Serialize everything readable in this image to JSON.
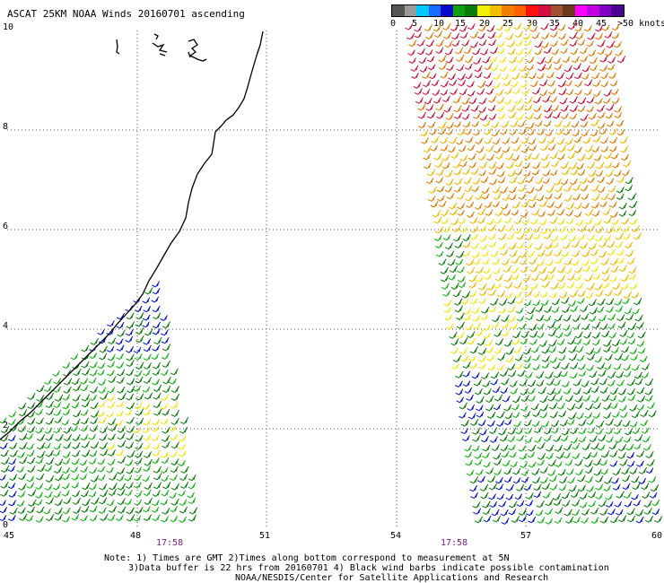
{
  "title": "ASCAT 25KM NOAA Winds 20160701 ascending",
  "legend": {
    "unit_label": ">50 knots",
    "ticks": [
      "0",
      "5",
      "10",
      "15",
      "20",
      "25",
      "30",
      "35",
      "40",
      "45"
    ],
    "colors": [
      "#555555",
      "#9a9a9a",
      "#00c8ff",
      "#1a6cff",
      "#0a0acc",
      "#10a010",
      "#0a7a0a",
      "#f0f000",
      "#f0c000",
      "#f08000",
      "#ff6000",
      "#ff1010",
      "#d01040",
      "#a05030",
      "#6a3a1a",
      "#ff00ff",
      "#c000e0",
      "#8000c0",
      "#4a0090"
    ]
  },
  "axes": {
    "x_ticks": [
      "45",
      "48",
      "51",
      "54",
      "57",
      "60"
    ],
    "y_ticks": [
      "0",
      "2",
      "4",
      "6",
      "8",
      "10"
    ]
  },
  "swath_times": [
    "17:58",
    "17:58"
  ],
  "notes": [
    "Note: 1) Times are GMT 2)Times along bottom correspond to measurement at 5N",
    "3)Data buffer is 22 hrs from 20160701 4) Black wind barbs indicate possible contamination",
    "NOAA/NESDIS/Center for Satellite Applications and Research"
  ],
  "wind_colors": {
    "blue": "#0010c8",
    "green_dark": "#0a7a0a",
    "green": "#10b010",
    "yellow": "#f2e400",
    "gold": "#f0b800",
    "orange": "#e07800",
    "red": "#c8103a"
  }
}
